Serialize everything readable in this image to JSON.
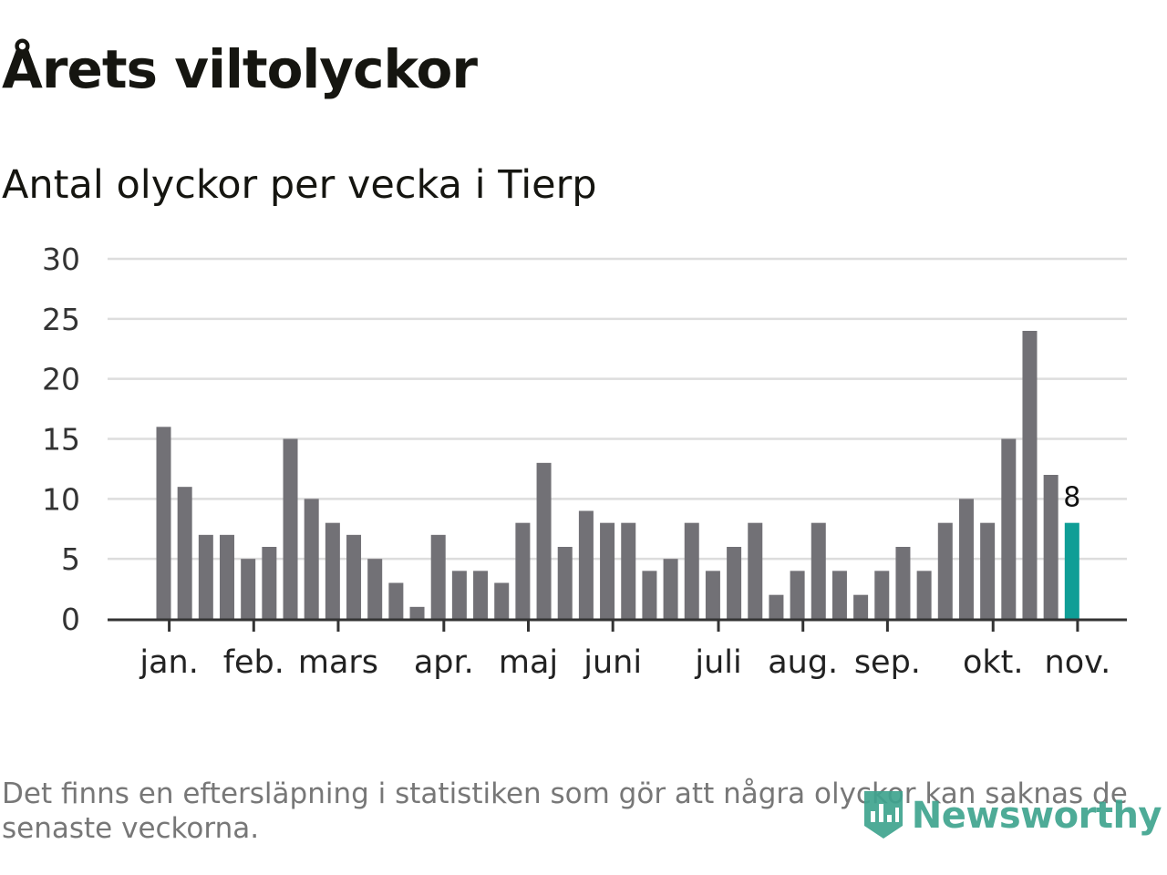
{
  "header": {
    "title": "Årets viltolyckor",
    "subtitle": "Antal olyckor per vecka i Tierp"
  },
  "footnote": "Det finns en eftersläpning i statistiken som gör att några olyckor kan saknas de senaste veckorna.",
  "logo": {
    "text": "Newsworthy",
    "icon": "newsworthy-logo-icon"
  },
  "colors": {
    "bar": "#727176",
    "highlight": "#0f9e96",
    "grid": "#dddddd",
    "axis": "#333333",
    "logo": "#3fa48f"
  },
  "chart_data": {
    "type": "bar",
    "title": "Antal olyckor per vecka i Tierp",
    "xlabel": "",
    "ylabel": "",
    "ylim": [
      0,
      30
    ],
    "yticks": [
      0,
      5,
      10,
      15,
      20,
      25,
      30
    ],
    "grid": true,
    "values": [
      16,
      11,
      7,
      7,
      5,
      6,
      15,
      10,
      8,
      7,
      5,
      3,
      1,
      7,
      4,
      4,
      3,
      8,
      13,
      6,
      9,
      8,
      8,
      4,
      5,
      8,
      4,
      6,
      8,
      2,
      4,
      8,
      4,
      2,
      4,
      6,
      4,
      8,
      10,
      8,
      15,
      24,
      12,
      8
    ],
    "highlight_index": 43,
    "highlight_label": "8",
    "month_ticks": [
      {
        "label": "jan.",
        "index": 0.35
      },
      {
        "label": "feb.",
        "index": 4.35
      },
      {
        "label": "mars",
        "index": 8.35
      },
      {
        "label": "apr.",
        "index": 13.35
      },
      {
        "label": "maj",
        "index": 17.35
      },
      {
        "label": "juni",
        "index": 21.35
      },
      {
        "label": "juli",
        "index": 26.35
      },
      {
        "label": "aug.",
        "index": 30.35
      },
      {
        "label": "sep.",
        "index": 34.35
      },
      {
        "label": "okt.",
        "index": 39.35
      },
      {
        "label": "nov.",
        "index": 43.35
      }
    ]
  }
}
